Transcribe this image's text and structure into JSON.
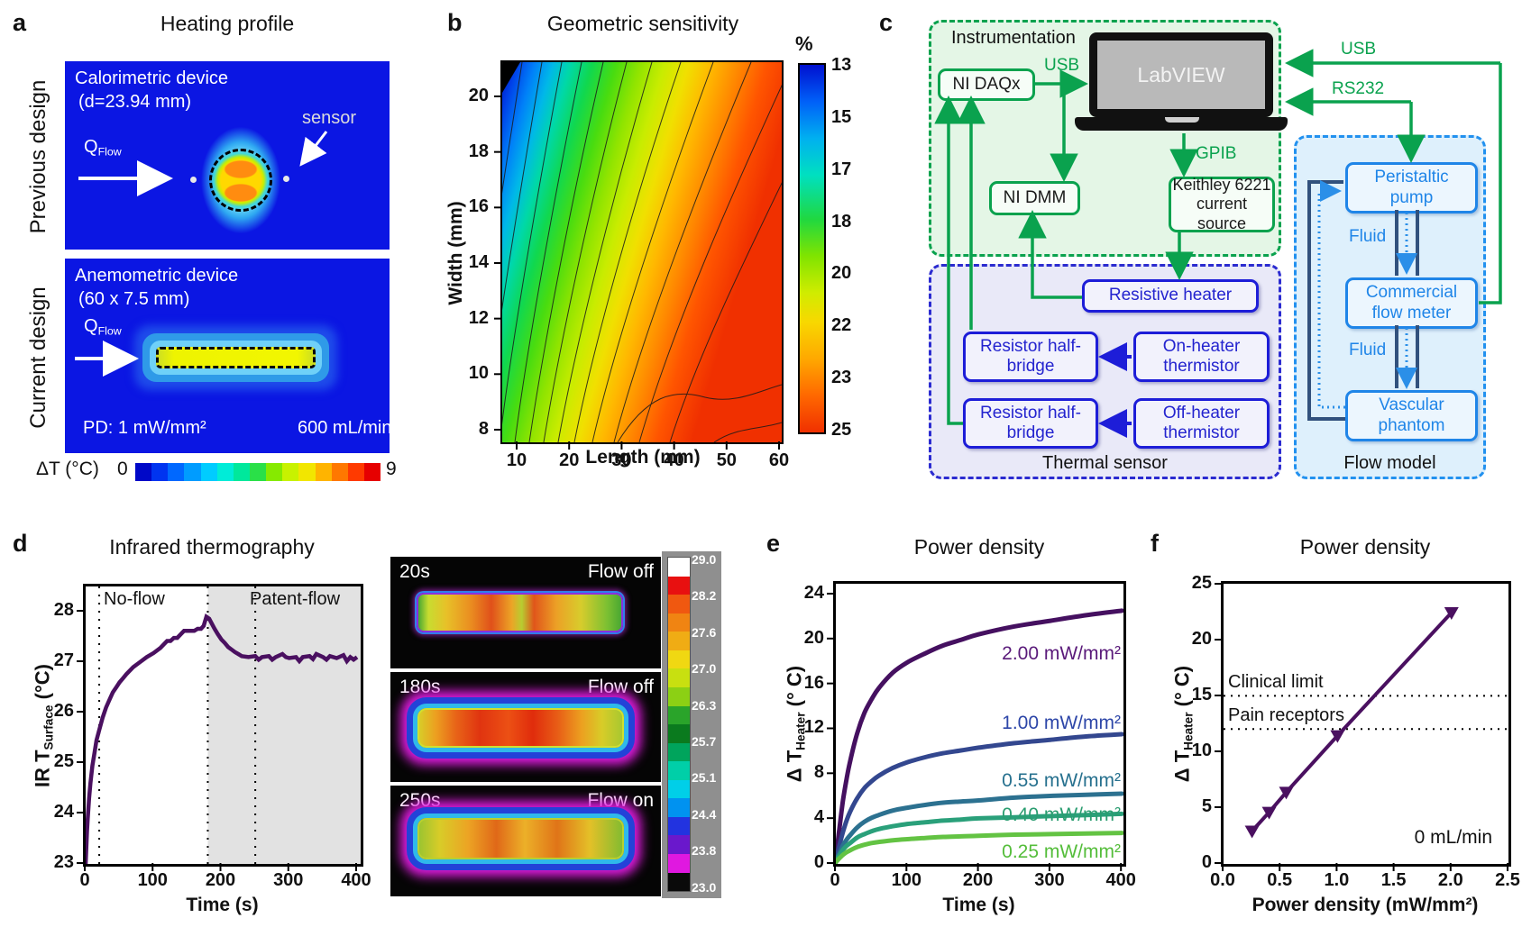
{
  "panels": {
    "a": {
      "label": "a",
      "title": "Heating profile",
      "row1": "Previous design",
      "row2": "Current design",
      "sim1": {
        "line1": "Calorimetric device",
        "line2": "(d=23.94 mm)",
        "sensor": "sensor",
        "q": "Q",
        "q_sub": "Flow"
      },
      "sim2": {
        "line1": "Anemometric device",
        "line2": "(60 x 7.5 mm)",
        "q": "Q",
        "q_sub": "Flow",
        "pd": "PD: 1 mW/mm²",
        "flow": "600 mL/min"
      },
      "colorbar": {
        "label": "ΔT (°C)",
        "min": "0",
        "max": "9",
        "colors": [
          "#0008c8",
          "#0034f0",
          "#0068ff",
          "#009cff",
          "#00ccff",
          "#00ecd8",
          "#00e89c",
          "#2ae048",
          "#86ea00",
          "#c8f200",
          "#f2e600",
          "#ffb400",
          "#ff7800",
          "#ff3a00",
          "#e60000"
        ]
      }
    },
    "b": {
      "label": "b",
      "title": "Geometric sensitivity"
    },
    "c": {
      "label": "c",
      "instrumentation": {
        "title": "Instrumentation",
        "daq": "NI DAQx",
        "usb": "USB",
        "laptop": "LabVIEW",
        "dmm": "NI DMM",
        "gpib": "GPIB",
        "keithley1": "Keithley 6221",
        "keithley2": "current source"
      },
      "right": {
        "usb": "USB",
        "rs232": "RS232"
      },
      "thermal": {
        "title": "Thermal sensor",
        "heater": "Resistive heater",
        "bridge1a": "Resistor half-",
        "bridge1b": "bridge",
        "bridge2a": "Resistor half-",
        "bridge2b": "bridge",
        "on1": "On-heater",
        "on2": "thermistor",
        "off1": "Off-heater",
        "off2": "thermistor"
      },
      "flow": {
        "title": "Flow model",
        "pump1": "Peristaltic",
        "pump2": "pump",
        "fluid1": "Fluid",
        "meter1": "Commercial",
        "meter2": "flow meter",
        "fluid2": "Fluid",
        "phantom1": "Vascular",
        "phantom2": "phantom"
      }
    },
    "d": {
      "label": "d",
      "title": "Infrared thermography",
      "no_flow": "No-flow",
      "patent_flow": "Patent-flow",
      "ylabel_pre": "IR T",
      "ylabel_sub": "Surface",
      "ylabel_suf": " (°C)",
      "ir": {
        "frames": [
          {
            "time": "20s",
            "flow": "Flow off"
          },
          {
            "time": "180s",
            "flow": "Flow off"
          },
          {
            "time": "250s",
            "flow": "Flow on"
          }
        ],
        "colorbar_labels": [
          "29.0",
          "28.2",
          "27.6",
          "27.0",
          "26.3",
          "25.7",
          "25.1",
          "24.4",
          "23.8",
          "23.0"
        ],
        "colorbar_colors": [
          "#ffffff",
          "#e81010",
          "#f05810",
          "#f08412",
          "#f0ac14",
          "#f0d812",
          "#c8e010",
          "#8cd014",
          "#2aa42a",
          "#0a7a1e",
          "#00a45c",
          "#00cfa8",
          "#00cfe8",
          "#0092f0",
          "#2233e0",
          "#6a18cc",
          "#e018e0",
          "#0a0a0a"
        ]
      }
    },
    "e": {
      "label": "e",
      "title": "Power density",
      "ylabel_pre": "Δ T",
      "ylabel_sub": "Heater",
      "ylabel_suf": " (° C)"
    },
    "f": {
      "label": "f",
      "title": "Power density",
      "ylabel_pre": "Δ T",
      "ylabel_sub": "Heater",
      "ylabel_suf": " (° C)",
      "clinical": "Clinical limit",
      "pain": "Pain receptors",
      "flow_rate": "0 mL/min"
    }
  },
  "chart_data": [
    {
      "id": "b",
      "type": "heatmap",
      "title": "Geometric sensitivity",
      "xlabel": "Length (mm)",
      "ylabel": "Width (mm)",
      "xticks": [
        10,
        20,
        30,
        40,
        50,
        60
      ],
      "yticks": [
        20,
        18,
        16,
        14,
        12,
        10,
        8
      ],
      "xlim": [
        7.4,
        60.7
      ],
      "ylim": [
        7.5,
        21.2
      ],
      "colorbar": {
        "unit": "%",
        "ticks": [
          13,
          15,
          17,
          18,
          20,
          22,
          23,
          25
        ],
        "orientation": "vertical",
        "note": "blue 13% at top-left of map increasing to red 25% at bottom-right"
      }
    },
    {
      "id": "d",
      "type": "line",
      "title": "Infrared thermography",
      "xlabel": "Time (s)",
      "ylabel": "IR T_Surface (°C)",
      "xticks": [
        0,
        100,
        200,
        300,
        400
      ],
      "yticks": [
        23,
        24,
        25,
        26,
        27,
        28
      ],
      "xlim": [
        0,
        405
      ],
      "ylim": [
        23,
        28.5
      ],
      "vlines": [
        20,
        180,
        250
      ],
      "shaded_region": [
        180,
        405
      ],
      "region_labels": [
        "No-flow",
        "Patent-flow"
      ],
      "series": [
        {
          "name": "IR surface temperature",
          "color": "#4a1060",
          "points": [
            [
              0,
              23
            ],
            [
              1,
              23.35
            ],
            [
              2,
              23.65
            ],
            [
              3,
              23.9
            ],
            [
              5,
              24.3
            ],
            [
              7,
              24.6
            ],
            [
              10,
              24.95
            ],
            [
              13,
              25.2
            ],
            [
              16,
              25.45
            ],
            [
              20,
              25.65
            ],
            [
              25,
              25.9
            ],
            [
              30,
              26.1
            ],
            [
              35,
              26.25
            ],
            [
              40,
              26.4
            ],
            [
              45,
              26.5
            ],
            [
              50,
              26.6
            ],
            [
              55,
              26.68
            ],
            [
              60,
              26.76
            ],
            [
              70,
              26.9
            ],
            [
              80,
              27.0
            ],
            [
              90,
              27.1
            ],
            [
              100,
              27.18
            ],
            [
              110,
              27.28
            ],
            [
              115,
              27.35
            ],
            [
              120,
              27.42
            ],
            [
              125,
              27.42
            ],
            [
              130,
              27.48
            ],
            [
              135,
              27.48
            ],
            [
              140,
              27.55
            ],
            [
              145,
              27.62
            ],
            [
              150,
              27.62
            ],
            [
              155,
              27.62
            ],
            [
              160,
              27.62
            ],
            [
              165,
              27.66
            ],
            [
              170,
              27.66
            ],
            [
              174,
              27.72
            ],
            [
              178,
              27.9
            ],
            [
              182,
              27.86
            ],
            [
              186,
              27.76
            ],
            [
              190,
              27.66
            ],
            [
              195,
              27.55
            ],
            [
              200,
              27.45
            ],
            [
              205,
              27.38
            ],
            [
              210,
              27.3
            ],
            [
              215,
              27.25
            ],
            [
              220,
              27.2
            ],
            [
              225,
              27.16
            ],
            [
              230,
              27.12
            ],
            [
              240,
              27.1
            ],
            [
              250,
              27.12
            ],
            [
              255,
              27.05
            ],
            [
              260,
              27.1
            ],
            [
              270,
              27.12
            ],
            [
              275,
              27.05
            ],
            [
              280,
              27.1
            ],
            [
              290,
              27.16
            ],
            [
              295,
              27.1
            ],
            [
              300,
              27.08
            ],
            [
              310,
              27.1
            ],
            [
              315,
              27.02
            ],
            [
              320,
              27.1
            ],
            [
              330,
              27.12
            ],
            [
              335,
              27.06
            ],
            [
              340,
              27.16
            ],
            [
              350,
              27.1
            ],
            [
              355,
              27.05
            ],
            [
              360,
              27.12
            ],
            [
              370,
              27.08
            ],
            [
              380,
              27.14
            ],
            [
              385,
              27.02
            ],
            [
              390,
              27.1
            ],
            [
              395,
              27.05
            ],
            [
              400,
              27.1
            ]
          ]
        }
      ]
    },
    {
      "id": "e",
      "type": "line",
      "title": "Power density",
      "xlabel": "Time (s)",
      "ylabel": "ΔT_Heater (° C)",
      "xticks": [
        0,
        100,
        200,
        300,
        400
      ],
      "yticks": [
        0,
        4,
        8,
        12,
        16,
        20,
        24
      ],
      "xlim": [
        0,
        400
      ],
      "ylim": [
        0,
        24.8
      ],
      "series": [
        {
          "label": "2.00 mW/mm²",
          "color": "#451060",
          "label_color": "#5a1a7a",
          "points": [
            [
              0,
              0
            ],
            [
              3,
              1.9
            ],
            [
              5,
              3
            ],
            [
              10,
              5.5
            ],
            [
              15,
              7.4
            ],
            [
              20,
              9
            ],
            [
              30,
              11.5
            ],
            [
              40,
              13.3
            ],
            [
              50,
              14.5
            ],
            [
              60,
              15.5
            ],
            [
              80,
              16.9
            ],
            [
              100,
              17.8
            ],
            [
              125,
              18.6
            ],
            [
              150,
              19.3
            ],
            [
              175,
              19.8
            ],
            [
              200,
              20.3
            ],
            [
              250,
              21
            ],
            [
              300,
              21.5
            ],
            [
              350,
              22
            ],
            [
              400,
              22.4
            ]
          ]
        },
        {
          "label": "1.00 mW/mm²",
          "color": "#33478f",
          "label_color": "#2d46a8",
          "points": [
            [
              0,
              0
            ],
            [
              3,
              0.95
            ],
            [
              5,
              1.5
            ],
            [
              10,
              2.7
            ],
            [
              15,
              3.7
            ],
            [
              20,
              4.5
            ],
            [
              30,
              5.7
            ],
            [
              40,
              6.6
            ],
            [
              50,
              7.2
            ],
            [
              60,
              7.7
            ],
            [
              80,
              8.4
            ],
            [
              100,
              8.9
            ],
            [
              125,
              9.35
            ],
            [
              150,
              9.7
            ],
            [
              175,
              9.95
            ],
            [
              200,
              10.2
            ],
            [
              250,
              10.6
            ],
            [
              300,
              10.9
            ],
            [
              350,
              11.2
            ],
            [
              400,
              11.4
            ]
          ]
        },
        {
          "label": "0.55 mW/mm²",
          "color": "#2c7190",
          "label_color": "#26708e",
          "points": [
            [
              0,
              0
            ],
            [
              3,
              0.5
            ],
            [
              5,
              0.8
            ],
            [
              10,
              1.5
            ],
            [
              15,
              2
            ],
            [
              20,
              2.4
            ],
            [
              30,
              3.1
            ],
            [
              40,
              3.6
            ],
            [
              50,
              3.95
            ],
            [
              60,
              4.2
            ],
            [
              80,
              4.6
            ],
            [
              100,
              4.85
            ],
            [
              125,
              5.1
            ],
            [
              150,
              5.3
            ],
            [
              175,
              5.4
            ],
            [
              200,
              5.5
            ],
            [
              250,
              5.75
            ],
            [
              300,
              5.9
            ],
            [
              350,
              6
            ],
            [
              400,
              6.1
            ]
          ]
        },
        {
          "label": "0.40 mW/mm²",
          "color": "#2aa07a",
          "label_color": "#2a9d70",
          "points": [
            [
              0,
              0
            ],
            [
              3,
              0.4
            ],
            [
              5,
              0.6
            ],
            [
              10,
              1.1
            ],
            [
              15,
              1.45
            ],
            [
              20,
              1.7
            ],
            [
              30,
              2.2
            ],
            [
              40,
              2.5
            ],
            [
              50,
              2.75
            ],
            [
              60,
              2.95
            ],
            [
              80,
              3.2
            ],
            [
              100,
              3.4
            ],
            [
              125,
              3.55
            ],
            [
              150,
              3.7
            ],
            [
              175,
              3.8
            ],
            [
              200,
              3.9
            ],
            [
              250,
              4
            ],
            [
              300,
              4.1
            ],
            [
              350,
              4.2
            ],
            [
              400,
              4.3
            ]
          ]
        },
        {
          "label": "0.25 mW/mm²",
          "color": "#63c343",
          "label_color": "#54bd3a",
          "points": [
            [
              0,
              0
            ],
            [
              3,
              0.22
            ],
            [
              5,
              0.35
            ],
            [
              10,
              0.65
            ],
            [
              15,
              0.88
            ],
            [
              20,
              1.05
            ],
            [
              30,
              1.35
            ],
            [
              40,
              1.55
            ],
            [
              50,
              1.7
            ],
            [
              60,
              1.8
            ],
            [
              80,
              1.95
            ],
            [
              100,
              2.05
            ],
            [
              125,
              2.15
            ],
            [
              150,
              2.25
            ],
            [
              175,
              2.3
            ],
            [
              200,
              2.35
            ],
            [
              250,
              2.45
            ],
            [
              300,
              2.5
            ],
            [
              350,
              2.55
            ],
            [
              400,
              2.6
            ]
          ]
        }
      ]
    },
    {
      "id": "f",
      "type": "scatter-line",
      "title": "Power density",
      "xlabel": "Power density (mW/mm²)",
      "ylabel": "ΔT_Heater (° C)",
      "xticks": [
        0,
        0.5,
        1,
        1.5,
        2,
        2.5
      ],
      "xtick_labels": [
        "0.0",
        "0.5",
        "1.0",
        "1.5",
        "2.0",
        "2.5"
      ],
      "yticks": [
        0,
        5,
        10,
        15,
        20,
        25
      ],
      "xlim": [
        0,
        2.5
      ],
      "ylim": [
        0,
        25.1
      ],
      "hlines": [
        {
          "y": 15,
          "label": "Clinical limit"
        },
        {
          "y": 12,
          "label": "Pain receptors"
        }
      ],
      "annotation": "0 mL/min",
      "series": [
        {
          "name": "ΔT_Heater vs power density at 0 mL/min",
          "color": "#4a1060",
          "marker": "triangle-down",
          "points": [
            [
              0.25,
              2.8
            ],
            [
              0.4,
              4.5
            ],
            [
              0.55,
              6.3
            ],
            [
              1,
              11.4
            ],
            [
              2,
              22.5
            ]
          ]
        }
      ]
    }
  ]
}
